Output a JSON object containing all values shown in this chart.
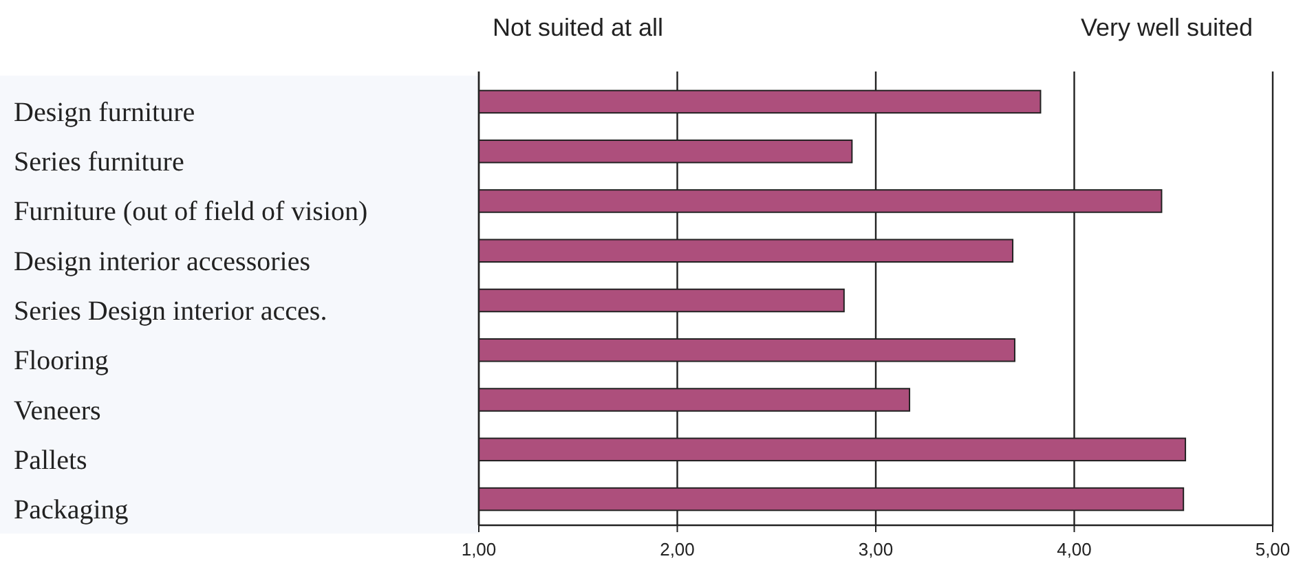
{
  "chart_data": {
    "type": "bar",
    "orientation": "horizontal",
    "categories": [
      "Design furniture",
      "Series furniture",
      "Furniture (out of field of vision)",
      "Design interior accessories",
      "Series Design interior acces.",
      "Flooring",
      "Veneers",
      "Pallets",
      "Packaging"
    ],
    "values": [
      3.83,
      2.88,
      4.44,
      3.69,
      2.84,
      3.7,
      3.17,
      4.56,
      4.55
    ],
    "color": "#ad4f7c",
    "xlim": [
      1,
      5
    ],
    "xticks": [
      {
        "value": 1,
        "label": "1,00"
      },
      {
        "value": 2,
        "label": "2,00"
      },
      {
        "value": 3,
        "label": "3,00"
      },
      {
        "value": 4,
        "label": "4,00"
      },
      {
        "value": 5,
        "label": "5,00"
      }
    ],
    "grid": "x",
    "annotations": [
      "Not suited at all",
      "Very well suited"
    ]
  }
}
